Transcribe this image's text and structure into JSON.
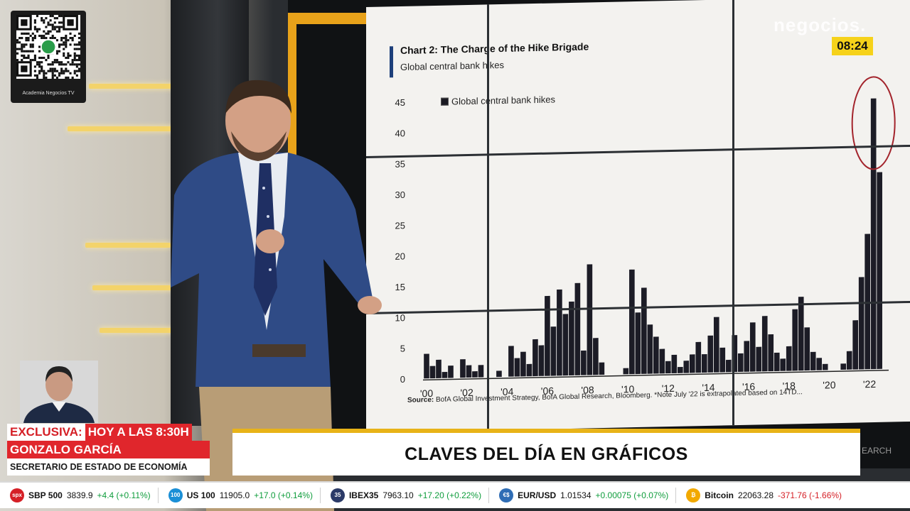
{
  "brand": {
    "logo_text": "negocios.",
    "clock": "08:24"
  },
  "qr": {
    "label": "Academia Negocios TV"
  },
  "chart": {
    "title": "Chart 2: The Charge of the Hike Brigade",
    "subtitle": "Global central bank hikes",
    "source_label": "Source:",
    "source_text": "BofA Global Investment Strategy, BofA Global Research, Bloomberg. *Note July '22 is extrapolated based on 14TD..."
  },
  "chart_data": {
    "type": "bar",
    "title": "Chart 2: The Charge of the Hike Brigade",
    "subtitle": "Global central bank hikes",
    "legend": [
      "Global central bank hikes"
    ],
    "y_ticks": [
      "0",
      "5",
      "10",
      "15",
      "20",
      "25",
      "30",
      "35",
      "40",
      "45"
    ],
    "x_ticks": [
      "'00",
      "'02",
      "'04",
      "'06",
      "'08",
      "'10",
      "'12",
      "'14",
      "'16",
      "'18",
      "'20",
      "'22"
    ],
    "ylim": [
      0,
      45
    ],
    "xlim": [
      2000,
      2022.6
    ],
    "x": [
      2000.0,
      2000.3,
      2000.6,
      2000.9,
      2001.2,
      2001.5,
      2001.8,
      2002.1,
      2002.4,
      2002.7,
      2003.0,
      2003.3,
      2003.6,
      2003.9,
      2004.2,
      2004.5,
      2004.8,
      2005.1,
      2005.4,
      2005.7,
      2006.0,
      2006.3,
      2006.6,
      2006.9,
      2007.2,
      2007.5,
      2007.8,
      2008.1,
      2008.4,
      2008.7,
      2009.0,
      2009.3,
      2009.6,
      2009.9,
      2010.2,
      2010.5,
      2010.8,
      2011.1,
      2011.4,
      2011.7,
      2012.0,
      2012.3,
      2012.6,
      2012.9,
      2013.2,
      2013.5,
      2013.8,
      2014.1,
      2014.4,
      2014.7,
      2015.0,
      2015.3,
      2015.6,
      2015.9,
      2016.2,
      2016.5,
      2016.8,
      2017.1,
      2017.4,
      2017.7,
      2018.0,
      2018.3,
      2018.6,
      2018.9,
      2019.2,
      2019.5,
      2019.8,
      2020.1,
      2020.4,
      2020.7,
      2021.0,
      2021.3,
      2021.6,
      2021.9,
      2022.2,
      2022.5
    ],
    "values": [
      4,
      2,
      3,
      1,
      2,
      0,
      3,
      2,
      1,
      2,
      0,
      0,
      1,
      0,
      5,
      3,
      4,
      2,
      6,
      5,
      13,
      8,
      14,
      10,
      12,
      15,
      4,
      18,
      6,
      2,
      0,
      0,
      0,
      1,
      17,
      10,
      14,
      8,
      6,
      4,
      2,
      3,
      1,
      2,
      3,
      5,
      3,
      6,
      9,
      4,
      2,
      6,
      3,
      5,
      8,
      4,
      9,
      6,
      3,
      2,
      4,
      10,
      12,
      7,
      3,
      2,
      1,
      0,
      0,
      1,
      3,
      8,
      15,
      22,
      44,
      32
    ],
    "highlight": {
      "x": 2022.2,
      "shape": "ellipse"
    }
  },
  "lower_third": {
    "exclusive_label": "EXCLUSIVA:",
    "exclusive_time": "HOY A LAS 8:30H",
    "guest_name": "GONZALO GARCÍA",
    "guest_role": "SECRETARIO DE ESTADO DE ECONOMÍA",
    "headline": "CLAVES DEL DÍA EN GRÁFICOS",
    "wall_fragment": "EARCH"
  },
  "ticker": [
    {
      "icon": "spx",
      "color": "#d51f26",
      "name": "SBP 500",
      "value": "3839.9",
      "change": "+4.4 (+0.11%)",
      "dir": "up"
    },
    {
      "icon": "100",
      "color": "#1a8fd6",
      "name": "US 100",
      "value": "11905.0",
      "change": "+17.0 (+0.14%)",
      "dir": "up"
    },
    {
      "icon": "35",
      "color": "#2b3a67",
      "name": "IBEX35",
      "value": "7963.10",
      "change": "+17.20 (+0.22%)",
      "dir": "up"
    },
    {
      "icon": "€$",
      "color": "#2f6db5",
      "name": "EUR/USD",
      "value": "1.01534",
      "change": "+0.00075 (+0.07%)",
      "dir": "up"
    },
    {
      "icon": "₿",
      "color": "#f2a900",
      "name": "Bitcoin",
      "value": "22063.28",
      "change": "-371.76 (-1.66%)",
      "dir": "down"
    }
  ]
}
